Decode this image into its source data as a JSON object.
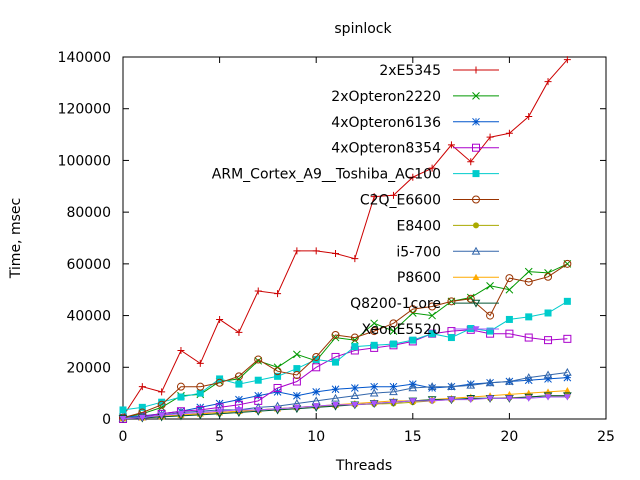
{
  "chart_data": {
    "type": "line",
    "title": "spinlock",
    "xlabel": "Threads",
    "ylabel": "Time, msec",
    "xlim": [
      0,
      25
    ],
    "ylim": [
      0,
      140000
    ],
    "x_ticks": [
      0,
      5,
      10,
      15,
      20,
      25
    ],
    "y_ticks": [
      0,
      20000,
      40000,
      60000,
      80000,
      100000,
      120000,
      140000
    ],
    "x_tick_labels": [
      "0",
      "5",
      "10",
      "15",
      "20",
      "25"
    ],
    "y_tick_labels": [
      "0",
      "20000",
      "40000",
      "60000",
      "80000",
      "100000",
      "120000",
      "140000"
    ],
    "grid": false,
    "legend_position": "top-right",
    "x": [
      0,
      1,
      2,
      3,
      4,
      5,
      6,
      7,
      8,
      9,
      10,
      11,
      12,
      13,
      14,
      15,
      16,
      17,
      18,
      19,
      20,
      21,
      22,
      23
    ],
    "series": [
      {
        "name": "2xE5345",
        "color": "#cc0000",
        "marker": "plus",
        "values": [
          1000,
          12500,
          10500,
          26500,
          21500,
          38500,
          33500,
          49500,
          48500,
          65000,
          65000,
          64000,
          62000,
          86000,
          86500,
          93500,
          97000,
          106000,
          99500,
          109000,
          110500,
          117000,
          130500,
          139000
        ]
      },
      {
        "name": "2xOpteron2220",
        "color": "#009900",
        "marker": "cross",
        "values": [
          500,
          2000,
          4500,
          9000,
          9500,
          14500,
          15500,
          22500,
          20000,
          25000,
          22500,
          31500,
          30500,
          37000,
          34000,
          41000,
          40000,
          45500,
          47000,
          51500,
          50000,
          57000,
          56500,
          60000
        ]
      },
      {
        "name": "4xOpteron6136",
        "color": "#0055cc",
        "marker": "star",
        "values": [
          800,
          1200,
          2000,
          3000,
          4500,
          6000,
          7500,
          9000,
          10500,
          9000,
          10500,
          11500,
          12000,
          12500,
          12500,
          13500,
          12000,
          12500,
          13500,
          14000,
          14500,
          15000,
          15500,
          16000
        ]
      },
      {
        "name": "4xOpteron8354",
        "color": "#aa00cc",
        "marker": "open-square",
        "values": [
          0,
          1000,
          2000,
          3000,
          3500,
          4500,
          5500,
          7000,
          12000,
          14500,
          20000,
          24000,
          26500,
          27500,
          28500,
          30000,
          33000,
          34000,
          34500,
          33000,
          33000,
          31500,
          30500,
          31000
        ]
      },
      {
        "name": "ARM_Cortex_A9__Toshiba_AC100",
        "color": "#00cccc",
        "marker": "filled-square",
        "values": [
          3500,
          4500,
          6500,
          8500,
          10000,
          15500,
          13500,
          15000,
          16500,
          19500,
          23000,
          22000,
          28000,
          28500,
          29000,
          30500,
          33000,
          31500,
          35000,
          34000,
          38500,
          39500,
          41000,
          45500
        ]
      },
      {
        "name": "C2Q_E6600",
        "color": "#993300",
        "marker": "open-circle",
        "values": [
          500,
          2500,
          5500,
          12500,
          12500,
          14000,
          16500,
          23000,
          18500,
          17000,
          24000,
          32500,
          31500,
          34000,
          37000,
          42500,
          43500,
          45500,
          46500,
          40000,
          54500,
          53000,
          55000,
          60000
        ]
      },
      {
        "name": "E8400",
        "color": "#aaaa00",
        "marker": "filled-circle",
        "values": [
          200,
          500,
          1000,
          1500,
          2000,
          2500,
          3000,
          3500,
          4000,
          4500,
          5000,
          5200,
          5500,
          5800,
          6000,
          6500,
          7000,
          7500,
          7800,
          8000,
          8200,
          8500,
          9000,
          9000
        ]
      },
      {
        "name": "i5-700",
        "color": "#3366aa",
        "marker": "open-triangle",
        "values": [
          300,
          800,
          1500,
          2500,
          3000,
          3500,
          3500,
          4500,
          5000,
          6000,
          7000,
          8000,
          9000,
          10000,
          10500,
          12000,
          12500,
          12500,
          13000,
          14000,
          14500,
          16000,
          17000,
          18000
        ]
      },
      {
        "name": "P8600",
        "color": "#ffaa00",
        "marker": "filled-triangle",
        "values": [
          200,
          500,
          1000,
          1500,
          2000,
          2500,
          3000,
          3500,
          4000,
          4500,
          5000,
          5500,
          6000,
          6500,
          7000,
          7000,
          7500,
          8000,
          8500,
          9000,
          9500,
          10000,
          10500,
          11000
        ]
      },
      {
        "name": "Q8200-1core",
        "color": "#005533",
        "marker": "open-inverted-triangle",
        "values": [
          200,
          400,
          800,
          1200,
          1600,
          2000,
          2500,
          3000,
          3500,
          4000,
          4500,
          5000,
          5500,
          6000,
          6500,
          7000,
          7500,
          7500,
          8000,
          8000,
          8000,
          8500,
          9000,
          9000
        ]
      },
      {
        "name": "XeonE5520",
        "color": "#aa55ff",
        "marker": "filled-inverted-triangle",
        "values": [
          100,
          500,
          1500,
          2000,
          2500,
          3000,
          3500,
          3500,
          4000,
          4500,
          5000,
          5500,
          5500,
          6000,
          6500,
          7000,
          7000,
          7500,
          7500,
          8000,
          8000,
          8000,
          8500,
          8500
        ]
      }
    ]
  }
}
